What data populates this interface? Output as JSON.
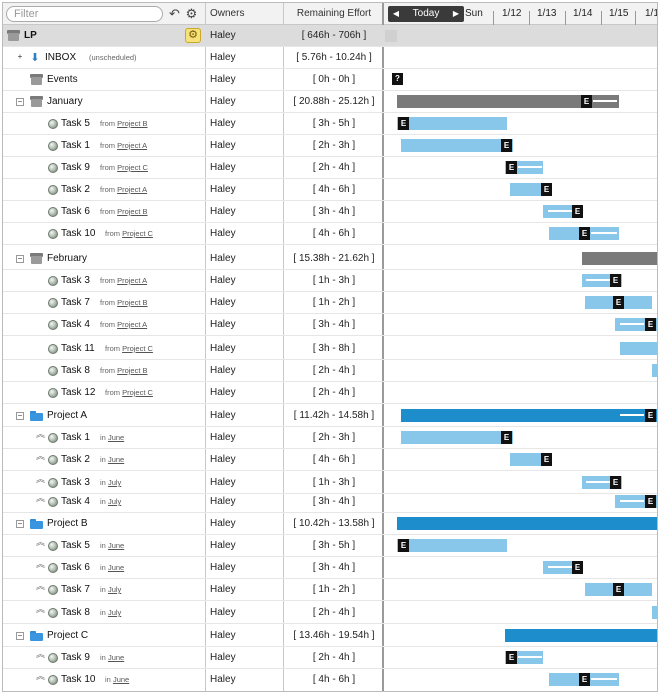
{
  "header": {
    "filter_placeholder": "Filter",
    "col_owners": "Owners",
    "col_effort": "Remaining Effort",
    "today_label": "Today",
    "dates": [
      "Sun",
      "1/12",
      "1/13",
      "1/14",
      "1/15",
      "1/1"
    ]
  },
  "rows": [
    {
      "name": "LP",
      "owner": "Haley",
      "effort": "[ 646h - 706h ]"
    },
    {
      "name": "INBOX",
      "note": "(unscheduled)",
      "owner": "Haley",
      "effort": "[ 5.76h - 10.24h ]"
    },
    {
      "name": "Events",
      "owner": "Haley",
      "effort": "[ 0h - 0h ]",
      "marker": "?"
    },
    {
      "name": "January",
      "owner": "Haley",
      "effort": "[ 20.88h - 25.12h ]"
    },
    {
      "name": "Task 5",
      "from_label": "from",
      "link": "Project B",
      "owner": "Haley",
      "effort": "[ 3h - 5h ]"
    },
    {
      "name": "Task 1",
      "from_label": "from",
      "link": "Project A",
      "owner": "Haley",
      "effort": "[ 2h - 3h ]"
    },
    {
      "name": "Task 9",
      "from_label": "from",
      "link": "Project C",
      "owner": "Haley",
      "effort": "[ 2h - 4h ]"
    },
    {
      "name": "Task 2",
      "from_label": "from",
      "link": "Project A",
      "owner": "Haley",
      "effort": "[ 4h - 6h ]"
    },
    {
      "name": "Task 6",
      "from_label": "from",
      "link": "Project B",
      "owner": "Haley",
      "effort": "[ 3h - 4h ]"
    },
    {
      "name": "Task 10",
      "from_label": "from",
      "link": "Project C",
      "owner": "Haley",
      "effort": "[ 4h - 6h ]"
    },
    {
      "name": "February",
      "owner": "Haley",
      "effort": "[ 15.38h - 21.62h ]"
    },
    {
      "name": "Task 3",
      "from_label": "from",
      "link": "Project A",
      "owner": "Haley",
      "effort": "[ 1h - 3h ]"
    },
    {
      "name": "Task 7",
      "from_label": "from",
      "link": "Project B",
      "owner": "Haley",
      "effort": "[ 1h - 2h ]"
    },
    {
      "name": "Task 4",
      "from_label": "from",
      "link": "Project A",
      "owner": "Haley",
      "effort": "[ 3h - 4h ]"
    },
    {
      "name": "Task 11",
      "from_label": "from",
      "link": "Project C",
      "owner": "Haley",
      "effort": "[ 3h - 8h ]"
    },
    {
      "name": "Task 8",
      "from_label": "from",
      "link": "Project B",
      "owner": "Haley",
      "effort": "[ 2h - 4h ]"
    },
    {
      "name": "Task 12",
      "from_label": "from",
      "link": "Project C",
      "owner": "Haley",
      "effort": "[ 2h - 4h ]"
    },
    {
      "name": "Project A",
      "owner": "Haley",
      "effort": "[ 11.42h - 14.58h ]"
    },
    {
      "name": "Task 1",
      "from_label": "in",
      "link": "June",
      "owner": "Haley",
      "effort": "[ 2h - 3h ]"
    },
    {
      "name": "Task 2",
      "from_label": "in",
      "link": "June",
      "owner": "Haley",
      "effort": "[ 4h - 6h ]"
    },
    {
      "name": "Task 3",
      "from_label": "in",
      "link": "July",
      "owner": "Haley",
      "effort": "[ 1h - 3h ]"
    },
    {
      "name": "Task 4",
      "from_label": "in",
      "link": "July",
      "owner": "Haley",
      "effort": "[ 3h - 4h ]"
    },
    {
      "name": "Project B",
      "owner": "Haley",
      "effort": "[ 10.42h - 13.58h ]"
    },
    {
      "name": "Task 5",
      "from_label": "in",
      "link": "June",
      "owner": "Haley",
      "effort": "[ 3h - 5h ]"
    },
    {
      "name": "Task 6",
      "from_label": "in",
      "link": "June",
      "owner": "Haley",
      "effort": "[ 3h - 4h ]"
    },
    {
      "name": "Task 7",
      "from_label": "in",
      "link": "July",
      "owner": "Haley",
      "effort": "[ 1h - 2h ]"
    },
    {
      "name": "Task 8",
      "from_label": "in",
      "link": "July",
      "owner": "Haley",
      "effort": "[ 2h - 4h ]"
    },
    {
      "name": "Project C",
      "owner": "Haley",
      "effort": "[ 13.46h - 19.54h ]"
    },
    {
      "name": "Task 9",
      "from_label": "in",
      "link": "June",
      "owner": "Haley",
      "effort": "[ 2h - 4h ]"
    },
    {
      "name": "Task 10",
      "from_label": "in",
      "link": "June",
      "owner": "Haley",
      "effort": "[ 4h - 6h ]"
    }
  ],
  "bar_marker": "E",
  "colors": {
    "task_bar": "#88c6ea",
    "month_bar": "#7a7a7a",
    "project_bar": "#1e8dcc",
    "header_bg": "#f2f2f2",
    "top_row_bg": "#dcdcdc"
  }
}
